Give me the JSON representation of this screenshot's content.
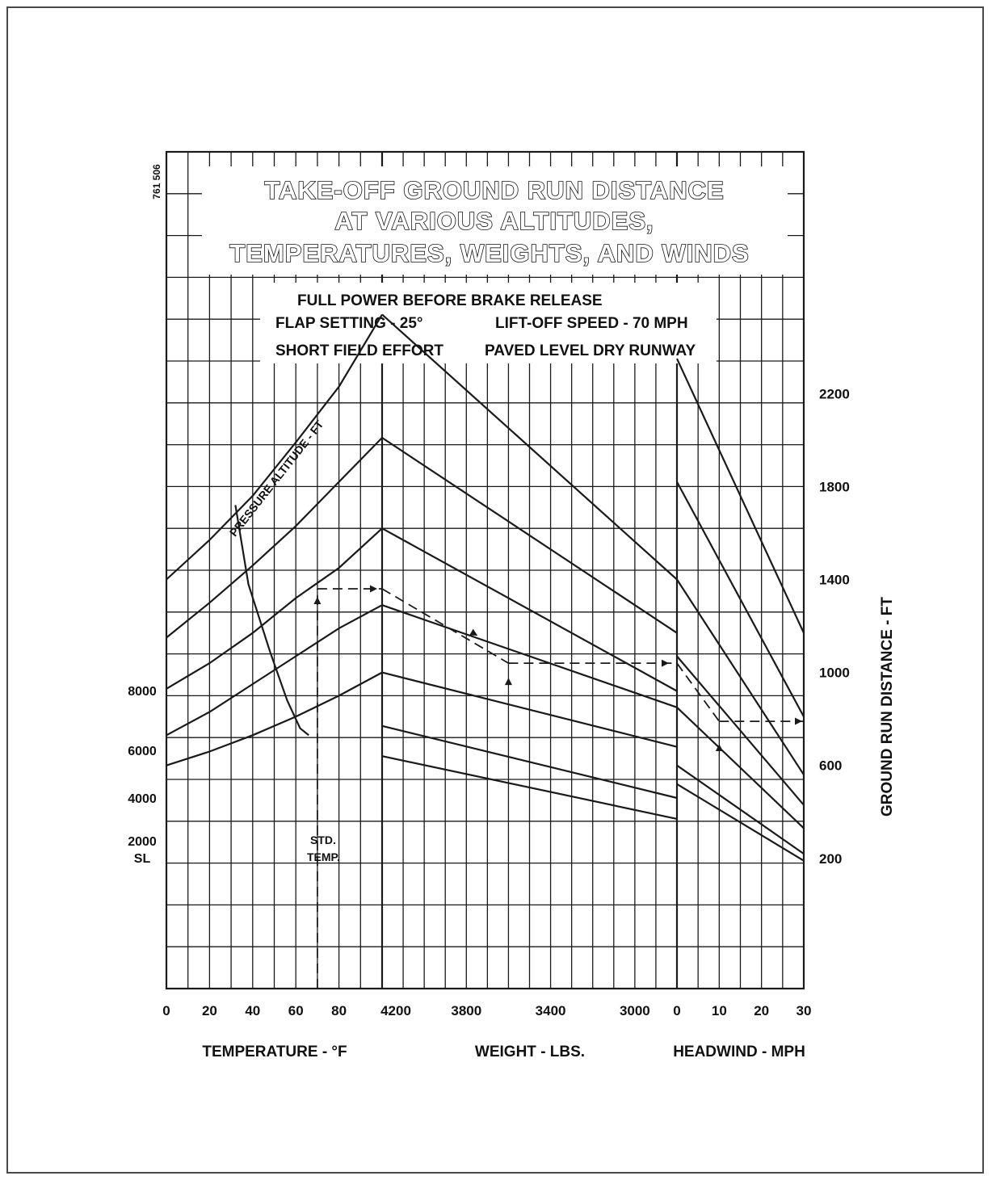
{
  "chart_data": {
    "type": "line",
    "doc_code": "761 506",
    "title_lines": [
      "TAKE-OFF GROUND RUN DISTANCE",
      "AT VARIOUS ALTITUDES,",
      "TEMPERATURES, WEIGHTS, AND WINDS"
    ],
    "conditions": {
      "power": "FULL POWER BEFORE BRAKE RELEASE",
      "flap": "FLAP SETTING - 25°",
      "liftoff": "LIFT-OFF SPEED - 70 MPH",
      "effort": "SHORT FIELD EFFORT",
      "runway": "PAVED LEVEL DRY RUNWAY"
    },
    "curve_label": "PRESSURE ALTITUDE - FT",
    "std_temp_label": [
      "STD.",
      "TEMP."
    ],
    "altitude_labels": [
      "8000",
      "6000",
      "4000",
      "2000",
      "SL"
    ],
    "ground_run_axis": {
      "label": "GROUND RUN DISTANCE - FT",
      "ticks": [
        "2200",
        "1800",
        "1400",
        "1000",
        "600",
        "200"
      ],
      "tick_values": [
        2200,
        1800,
        1400,
        1000,
        600,
        200
      ],
      "range": [
        -360,
        3240
      ]
    },
    "panels": [
      {
        "name": "temperature",
        "label": "TEMPERATURE - °F",
        "ticks": [
          "0",
          "20",
          "40",
          "60",
          "80"
        ],
        "tick_values": [
          0,
          20,
          40,
          60,
          80
        ],
        "range": [
          0,
          100
        ]
      },
      {
        "name": "weight",
        "label": "WEIGHT - LBS.",
        "ticks": [
          "4200",
          "3800",
          "3400",
          "3000"
        ],
        "tick_values": [
          4200,
          3800,
          3400,
          3000
        ],
        "range": [
          4200,
          2800
        ]
      },
      {
        "name": "headwind",
        "label": "HEADWIND - MPH",
        "ticks": [
          "0",
          "10",
          "20",
          "30"
        ],
        "tick_values": [
          0,
          10,
          20,
          30
        ],
        "range": [
          0,
          30
        ]
      }
    ],
    "series": [
      {
        "name": "8000",
        "temperature": [
          [
            0,
            1400
          ],
          [
            20,
            1570
          ],
          [
            40,
            1760
          ],
          [
            60,
            1990
          ],
          [
            80,
            2230
          ],
          [
            100,
            2540
          ]
        ],
        "weight": [
          [
            4200,
            2540
          ],
          [
            2800,
            1400
          ]
        ],
        "headwind": [
          [
            0,
            2350
          ],
          [
            30,
            1170
          ]
        ]
      },
      {
        "name": "6000",
        "temperature": [
          [
            0,
            1150
          ],
          [
            20,
            1300
          ],
          [
            40,
            1460
          ],
          [
            60,
            1630
          ],
          [
            80,
            1820
          ],
          [
            100,
            2010
          ]
        ],
        "weight": [
          [
            4200,
            2010
          ],
          [
            2800,
            1170
          ]
        ],
        "headwind": [
          [
            0,
            1820
          ],
          [
            30,
            810
          ]
        ]
      },
      {
        "name": "4000",
        "temperature": [
          [
            0,
            930
          ],
          [
            20,
            1040
          ],
          [
            40,
            1170
          ],
          [
            60,
            1320
          ],
          [
            80,
            1450
          ],
          [
            100,
            1620
          ]
        ],
        "weight": [
          [
            4200,
            1620
          ],
          [
            2800,
            920
          ]
        ],
        "headwind": [
          [
            0,
            1400
          ],
          [
            30,
            560
          ]
        ]
      },
      {
        "name": "2000",
        "temperature": [
          [
            0,
            730
          ],
          [
            20,
            830
          ],
          [
            40,
            950
          ],
          [
            60,
            1070
          ],
          [
            80,
            1190
          ],
          [
            100,
            1290
          ]
        ],
        "weight": [
          [
            4200,
            1290
          ],
          [
            2800,
            850
          ]
        ],
        "headwind": [
          [
            0,
            1070
          ],
          [
            30,
            430
          ]
        ]
      },
      {
        "name": "SL",
        "temperature": [
          [
            0,
            600
          ],
          [
            20,
            660
          ],
          [
            40,
            730
          ],
          [
            60,
            810
          ],
          [
            80,
            900
          ],
          [
            100,
            1000
          ]
        ],
        "weight": [
          [
            4200,
            1000
          ],
          [
            2800,
            680
          ]
        ],
        "headwind": [
          [
            0,
            850
          ],
          [
            30,
            330
          ]
        ]
      },
      {
        "name": "",
        "weight": [
          [
            4200,
            770
          ],
          [
            2800,
            460
          ]
        ],
        "headwind": [
          [
            0,
            600
          ],
          [
            30,
            220
          ]
        ]
      },
      {
        "name": "",
        "weight": [
          [
            4200,
            640
          ],
          [
            2800,
            370
          ]
        ],
        "headwind": [
          [
            0,
            520
          ],
          [
            30,
            190
          ]
        ]
      }
    ],
    "std_temp_curve": [
      [
        32,
        1720
      ],
      [
        38,
        1380
      ],
      [
        48,
        1090
      ],
      [
        56,
        880
      ],
      [
        62,
        760
      ],
      [
        66,
        730
      ]
    ],
    "example_path": [
      {
        "panel": "temperature",
        "x": 70,
        "y": -360
      },
      {
        "panel": "temperature",
        "x": 70,
        "y": 1360
      },
      {
        "panel": "weight",
        "x": 4200,
        "y": 1360
      },
      {
        "panel": "weight",
        "x": 3600,
        "y": 1040
      },
      {
        "panel": "headwind",
        "x": 0,
        "y": 1040
      },
      {
        "panel": "headwind",
        "x": 10,
        "y": 790
      },
      {
        "panel": "headwind",
        "x": 30,
        "y": 790
      }
    ],
    "grid": true
  }
}
